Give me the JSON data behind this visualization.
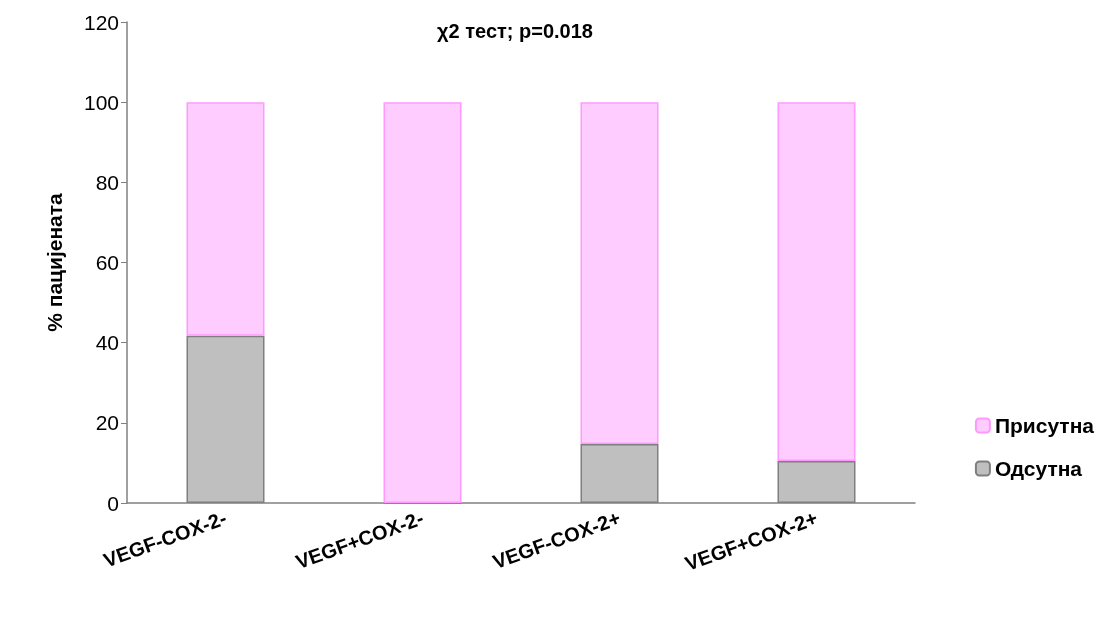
{
  "chart_data": {
    "type": "bar",
    "title": "χ2 тест; p=0.018",
    "ylabel": "% пацијената",
    "categories": [
      "VEGF-COX-2-",
      "VEGF+COX-2-",
      "VEGF-COX-2+",
      "VEGF+COX-2+"
    ],
    "series": [
      {
        "name": "Одсутна",
        "color": "#bfbfbf",
        "values": [
          41.7,
          0,
          14.7,
          10.5
        ]
      },
      {
        "name": "Присутна",
        "color": "#ffccff",
        "values": [
          58.3,
          100,
          85.3,
          89.5
        ]
      }
    ],
    "stacked": true,
    "ylim": [
      0,
      120
    ],
    "yticks": [
      0,
      20,
      40,
      60,
      80,
      100,
      120
    ],
    "grid": false,
    "legend": "right"
  }
}
